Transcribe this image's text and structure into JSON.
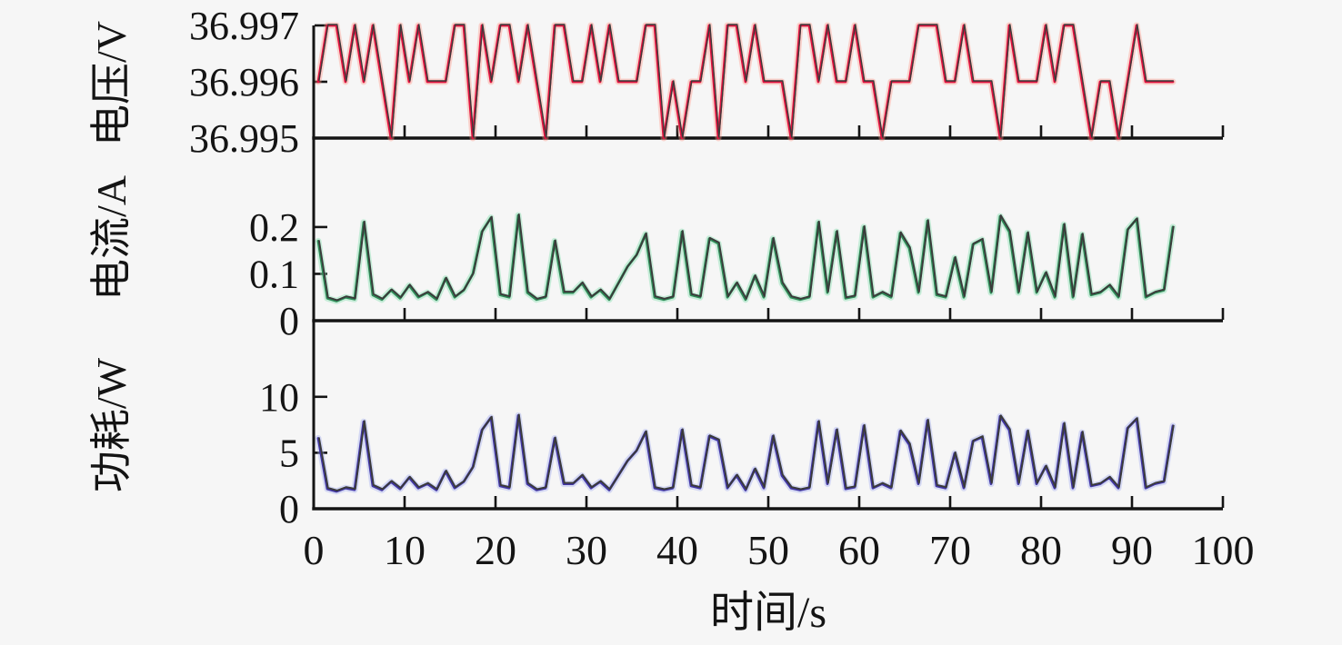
{
  "figure": {
    "background": "#f6f6f6",
    "axis_color": "#141414",
    "trace_core_color": "#3a3a3a"
  },
  "chart_data": {
    "type": "line",
    "title": "",
    "xlabel": "时间/s",
    "x_lim": [
      0,
      100
    ],
    "x_ticks": [
      0,
      10,
      20,
      30,
      40,
      50,
      60,
      70,
      80,
      90,
      100
    ],
    "x_tick_labels": [
      "0",
      "10",
      "20",
      "30",
      "40",
      "50",
      "60",
      "70",
      "80",
      "90",
      "100"
    ],
    "t_start": 0.5,
    "t_step": 1,
    "grid": false,
    "legend": "none",
    "panels": [
      {
        "ylabel": "电压/V",
        "ylim": [
          36.995,
          36.997
        ],
        "yticks": [
          36.995,
          36.996,
          36.997
        ],
        "ytick_labels": [
          "36.995",
          "36.996",
          "36.997"
        ],
        "series": {
          "name": "电压",
          "color": "#e2123f",
          "halo": "rgba(255,150,135,0.38)",
          "values": [
            36.996,
            36.997,
            36.997,
            36.996,
            36.997,
            36.996,
            36.997,
            36.996,
            36.995,
            36.997,
            36.996,
            36.997,
            36.996,
            36.996,
            36.996,
            36.997,
            36.997,
            36.995,
            36.997,
            36.996,
            36.997,
            36.997,
            36.996,
            36.997,
            36.996,
            36.995,
            36.997,
            36.997,
            36.996,
            36.996,
            36.997,
            36.996,
            36.997,
            36.996,
            36.996,
            36.996,
            36.997,
            36.997,
            36.995,
            36.996,
            36.995,
            36.996,
            36.996,
            36.997,
            36.995,
            36.997,
            36.997,
            36.996,
            36.997,
            36.996,
            36.996,
            36.996,
            36.995,
            36.997,
            36.997,
            36.996,
            36.997,
            36.996,
            36.996,
            36.997,
            36.996,
            36.996,
            36.995,
            36.996,
            36.996,
            36.996,
            36.997,
            36.997,
            36.997,
            36.996,
            36.996,
            36.997,
            36.996,
            36.996,
            36.996,
            36.995,
            36.997,
            36.996,
            36.996,
            36.996,
            36.997,
            36.996,
            36.997,
            36.997,
            36.996,
            36.995,
            36.996,
            36.996,
            36.995,
            36.996,
            36.997,
            36.996,
            36.996,
            36.996,
            36.996
          ]
        }
      },
      {
        "ylabel": "电流/A",
        "ylim": [
          0,
          0.39
        ],
        "yticks": [
          0,
          0.1,
          0.2
        ],
        "ytick_labels": [
          "0",
          "0.1",
          "0.2"
        ],
        "series": {
          "name": "电流",
          "color": "#2e8b57",
          "halo": "rgba(140,225,180,0.45)",
          "values": [
            0.17,
            0.048,
            0.042,
            0.05,
            0.046,
            0.21,
            0.055,
            0.045,
            0.065,
            0.048,
            0.075,
            0.05,
            0.06,
            0.045,
            0.09,
            0.05,
            0.065,
            0.1,
            0.19,
            0.22,
            0.055,
            0.05,
            0.225,
            0.06,
            0.045,
            0.05,
            0.17,
            0.06,
            0.06,
            0.08,
            0.05,
            0.065,
            0.045,
            0.08,
            0.115,
            0.14,
            0.185,
            0.05,
            0.045,
            0.05,
            0.19,
            0.055,
            0.05,
            0.175,
            0.165,
            0.05,
            0.08,
            0.045,
            0.095,
            0.05,
            0.175,
            0.08,
            0.05,
            0.045,
            0.05,
            0.21,
            0.06,
            0.19,
            0.048,
            0.052,
            0.2,
            0.05,
            0.06,
            0.05,
            0.187,
            0.155,
            0.06,
            0.213,
            0.055,
            0.05,
            0.134,
            0.05,
            0.163,
            0.173,
            0.06,
            0.223,
            0.19,
            0.06,
            0.187,
            0.06,
            0.102,
            0.05,
            0.205,
            0.05,
            0.184,
            0.055,
            0.06,
            0.075,
            0.05,
            0.194,
            0.217,
            0.05,
            0.06,
            0.065,
            0.2
          ]
        }
      },
      {
        "ylabel": "功耗/W",
        "ylim": [
          0,
          16.8
        ],
        "yticks": [
          0,
          5,
          10
        ],
        "ytick_labels": [
          "0",
          "5",
          "10"
        ],
        "series": {
          "name": "功耗",
          "color": "#4136a4",
          "halo": "rgba(165,175,238,0.42)",
          "values": [
            6.29,
            1.78,
            1.55,
            1.85,
            1.7,
            7.77,
            2.04,
            1.67,
            2.41,
            1.78,
            2.78,
            1.85,
            2.22,
            1.67,
            3.33,
            1.85,
            2.41,
            3.7,
            7.03,
            8.14,
            2.04,
            1.85,
            8.33,
            2.22,
            1.67,
            1.85,
            6.29,
            2.22,
            2.22,
            2.96,
            1.85,
            2.41,
            1.67,
            2.96,
            4.26,
            5.18,
            6.85,
            1.85,
            1.67,
            1.85,
            7.03,
            2.04,
            1.85,
            6.48,
            6.11,
            1.85,
            2.96,
            1.67,
            3.52,
            1.85,
            6.48,
            2.96,
            1.85,
            1.67,
            1.85,
            7.77,
            2.22,
            7.03,
            1.78,
            1.92,
            7.4,
            1.85,
            2.22,
            1.85,
            6.92,
            5.74,
            2.22,
            7.88,
            2.04,
            1.85,
            4.96,
            1.85,
            6.03,
            6.4,
            2.22,
            8.25,
            7.03,
            2.22,
            6.92,
            2.22,
            3.77,
            1.85,
            7.59,
            1.85,
            6.81,
            2.04,
            2.22,
            2.78,
            1.85,
            7.18,
            8.03,
            1.85,
            2.22,
            2.41,
            7.4
          ]
        }
      }
    ]
  }
}
